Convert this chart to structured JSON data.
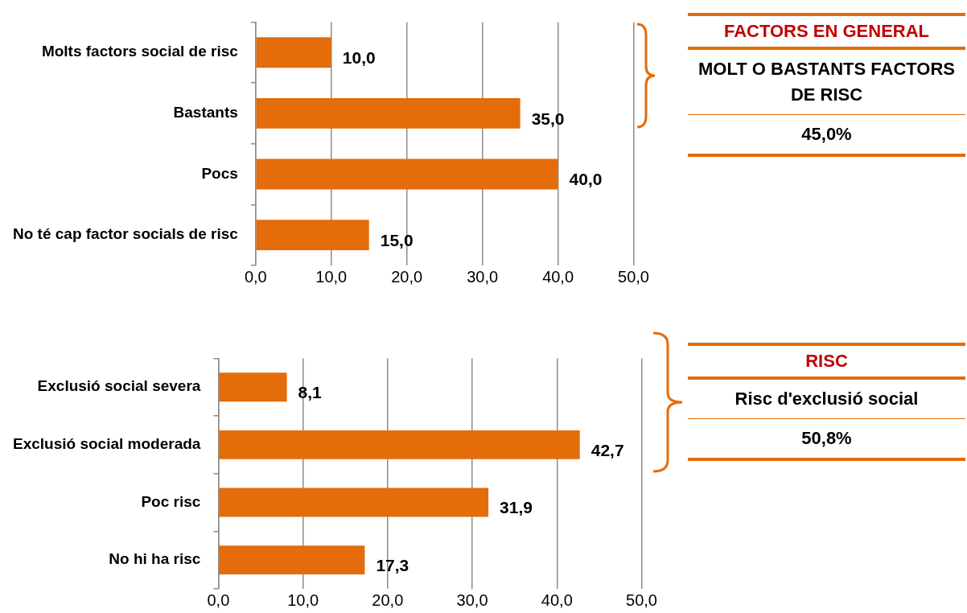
{
  "chart_data": [
    {
      "type": "bar",
      "orientation": "horizontal",
      "categories": [
        "Molts factors social de risc",
        "Bastants",
        "Pocs",
        "No té cap factor socials de risc"
      ],
      "values": [
        10.0,
        35.0,
        40.0,
        15.0
      ],
      "color": "#e46c0a",
      "value_labels": [
        "10,0",
        "35,0",
        "40,0",
        "15,0"
      ],
      "xlim": [
        0,
        50
      ],
      "xticks": [
        {
          "value": 0,
          "label": "0,0"
        },
        {
          "value": 10,
          "label": "10,0"
        },
        {
          "value": 20,
          "label": "20,0"
        },
        {
          "value": 30,
          "label": "30,0"
        },
        {
          "value": 40,
          "label": "40,0"
        },
        {
          "value": 50,
          "label": "50,0"
        }
      ],
      "grid": "x",
      "legend": false
    },
    {
      "type": "other",
      "title": "FACTORS EN GENERAL",
      "annotations": [
        "MOLT O BASTANTS FACTORS DE RISC",
        "45,0%"
      ]
    },
    {
      "type": "bar",
      "orientation": "horizontal",
      "categories": [
        "Exclusió social severa",
        "Exclusió social moderada",
        "Poc risc",
        "No hi ha risc"
      ],
      "values": [
        8.1,
        42.7,
        31.9,
        17.3
      ],
      "color": "#e46c0a",
      "value_labels": [
        "8,1",
        "42,7",
        "31,9",
        "17,3"
      ],
      "xlim": [
        0,
        50
      ],
      "xticks": [
        {
          "value": 0,
          "label": "0,0"
        },
        {
          "value": 10,
          "label": "10,0"
        },
        {
          "value": 20,
          "label": "20,0"
        },
        {
          "value": 30,
          "label": "30,0"
        },
        {
          "value": 40,
          "label": "40,0"
        },
        {
          "value": 50,
          "label": "50,0"
        }
      ],
      "grid": "x",
      "legend": false
    },
    {
      "type": "other",
      "title": "RISC",
      "annotations": [
        "Risc d'exclusió social",
        "50,8%"
      ]
    }
  ]
}
